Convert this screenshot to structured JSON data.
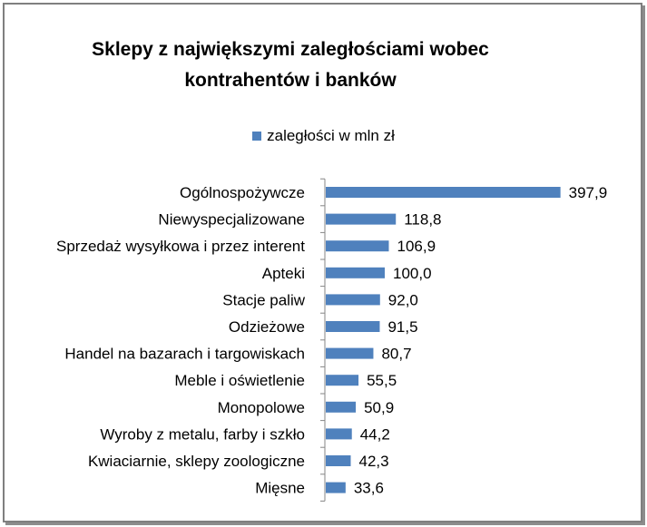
{
  "chart_data": {
    "type": "bar",
    "orientation": "horizontal",
    "title_lines": [
      "Sklepy z największymi zaległościami wobec",
      "kontrahentów i banków"
    ],
    "categories": [
      "Ogólnospożywcze",
      "Niewyspecjalizowane",
      "Sprzedaż wysyłkowa i przez interent",
      "Apteki",
      "Stacje paliw",
      "Odzieżowe",
      "Handel na bazarach i targowiskach",
      "Meble i oświetlenie",
      "Monopolowe",
      "Wyroby z metalu, farby i szkło",
      "Kwiaciarnie, sklepy zoologiczne",
      "Mięsne"
    ],
    "series": [
      {
        "name": "zaległości w mln zł",
        "values": [
          397.9,
          118.8,
          106.9,
          100.0,
          92.0,
          91.5,
          80.7,
          55.5,
          50.9,
          44.2,
          42.3,
          33.6
        ],
        "value_labels": [
          "397,9",
          "118,8",
          "106,9",
          "100,0",
          "92,0",
          "91,5",
          "80,7",
          "55,5",
          "50,9",
          "44,2",
          "42,3",
          "33,6"
        ]
      }
    ],
    "xlim": [
      0,
      400
    ],
    "grid": false,
    "legend_position": "top",
    "bar_color": "#4f81bd"
  }
}
